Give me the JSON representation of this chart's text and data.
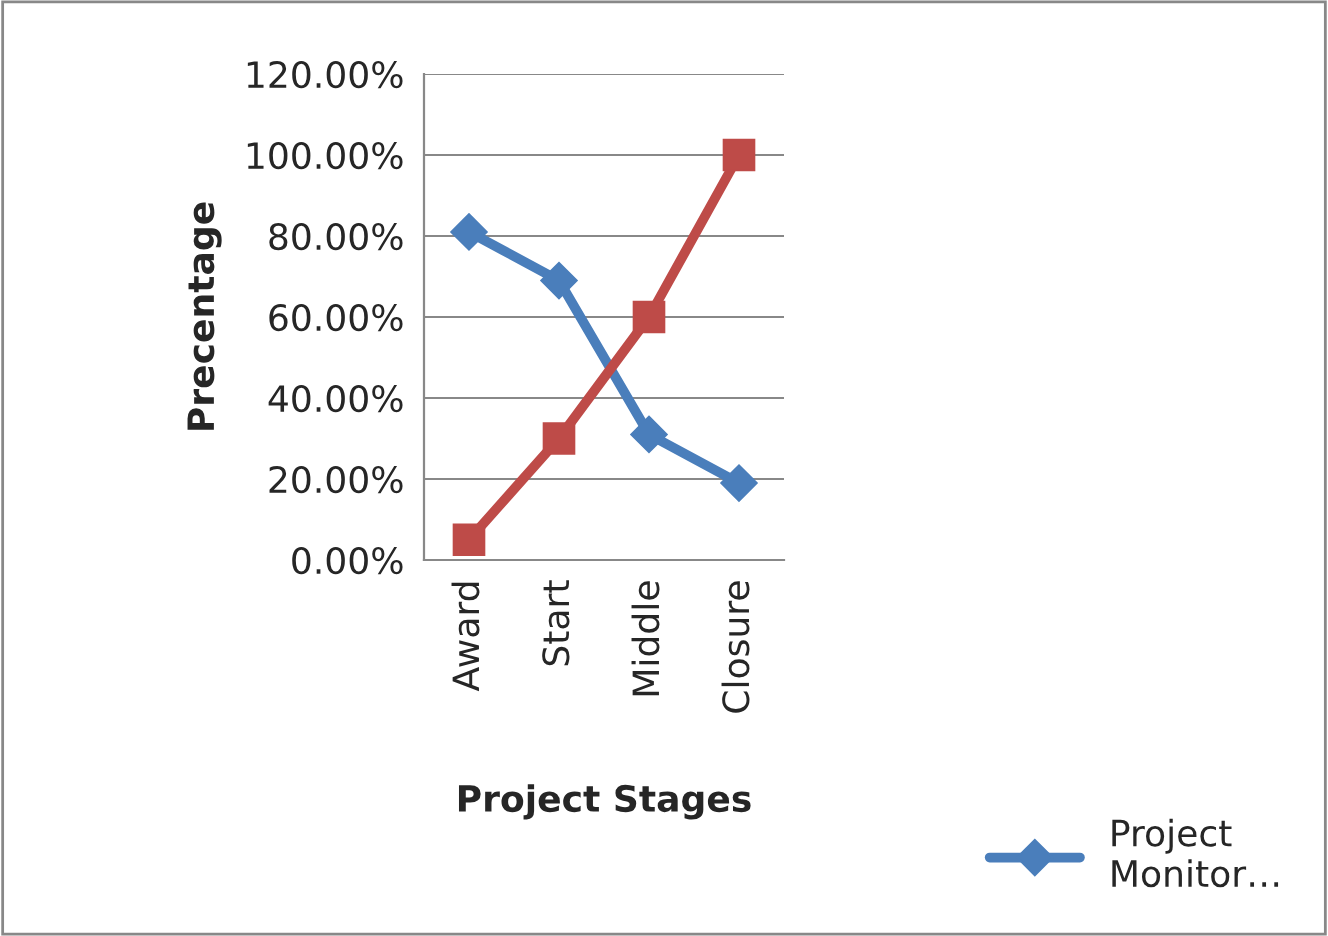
{
  "chart_data": {
    "type": "line",
    "xlabel": "Project Stages",
    "ylabel": "Precentage",
    "categories": [
      "Award",
      "Start",
      "Middle",
      "Closure"
    ],
    "series": [
      {
        "name": "Project\nMonitor…",
        "color": "#4a7ebb",
        "marker": "diamond",
        "values": [
          81,
          69,
          31,
          19
        ]
      },
      {
        "color": "#be4b48",
        "marker": "square",
        "values": [
          5,
          30,
          60,
          100
        ]
      }
    ],
    "ylim": [
      0,
      120
    ],
    "yticks": [
      {
        "value": 0,
        "label": "0.00%"
      },
      {
        "value": 20,
        "label": "20.00%"
      },
      {
        "value": 40,
        "label": "40.00%"
      },
      {
        "value": 60,
        "label": "60.00%"
      },
      {
        "value": 80,
        "label": "80.00%"
      },
      {
        "value": 100,
        "label": "100.00%"
      },
      {
        "value": 120,
        "label": "120.00%"
      }
    ],
    "grid": "y",
    "legend": "bottom right",
    "line_style": "solid"
  }
}
